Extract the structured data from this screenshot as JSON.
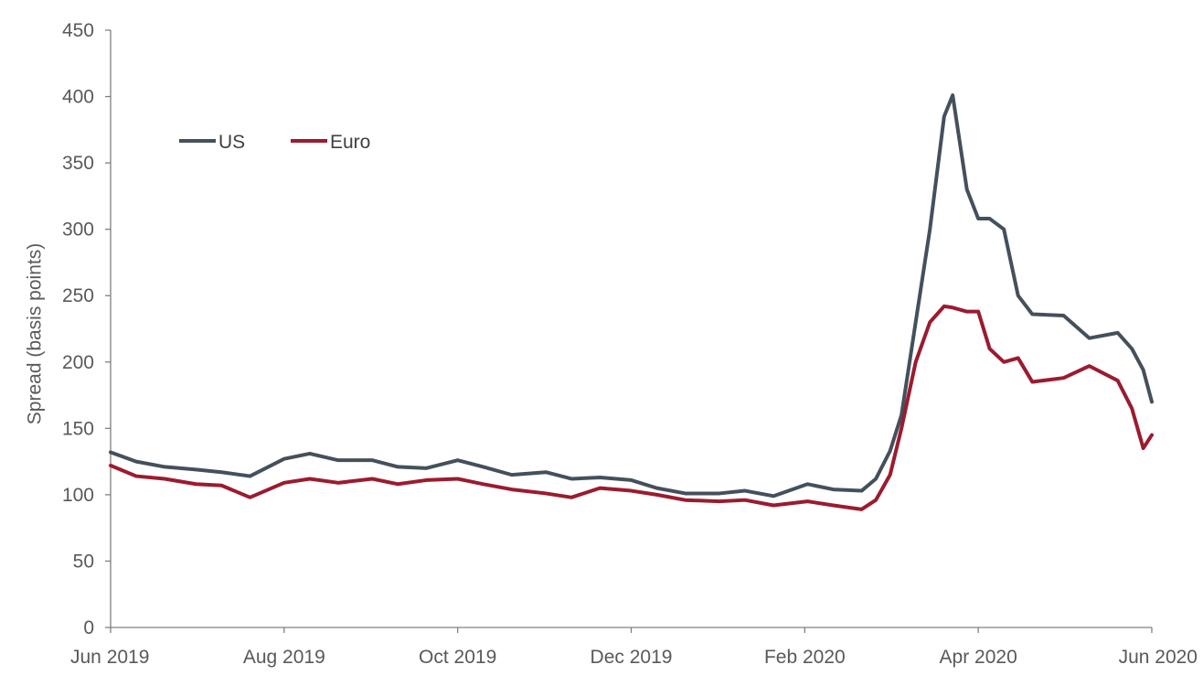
{
  "chart_data": {
    "type": "line",
    "title": "",
    "xlabel": "",
    "ylabel": "Spread (basis points)",
    "ylim": [
      0,
      450
    ],
    "yticks": [
      0,
      50,
      100,
      150,
      200,
      250,
      300,
      350,
      400,
      450
    ],
    "xlim": [
      "2019-06-01",
      "2020-06-01"
    ],
    "xticks": [
      "Jun 2019",
      "Aug 2019",
      "Oct 2019",
      "Dec 2019",
      "Feb 2020",
      "Apr 2020",
      "Jun 2020"
    ],
    "grid": false,
    "legend_position": "top-left",
    "x": [
      "2019-06-01",
      "2019-06-10",
      "2019-06-20",
      "2019-07-01",
      "2019-07-10",
      "2019-07-20",
      "2019-08-01",
      "2019-08-10",
      "2019-08-20",
      "2019-09-01",
      "2019-09-10",
      "2019-09-20",
      "2019-10-01",
      "2019-10-10",
      "2019-10-20",
      "2019-11-01",
      "2019-11-10",
      "2019-11-20",
      "2019-12-01",
      "2019-12-10",
      "2019-12-20",
      "2020-01-01",
      "2020-01-10",
      "2020-01-20",
      "2020-02-01",
      "2020-02-10",
      "2020-02-20",
      "2020-02-25",
      "2020-03-01",
      "2020-03-05",
      "2020-03-10",
      "2020-03-15",
      "2020-03-20",
      "2020-03-23",
      "2020-03-28",
      "2020-04-01",
      "2020-04-05",
      "2020-04-10",
      "2020-04-15",
      "2020-04-20",
      "2020-05-01",
      "2020-05-10",
      "2020-05-20",
      "2020-05-25",
      "2020-05-29",
      "2020-06-01"
    ],
    "series": [
      {
        "name": "US",
        "color": "#44505c",
        "values": [
          132,
          125,
          121,
          119,
          117,
          114,
          127,
          131,
          126,
          126,
          121,
          120,
          126,
          121,
          115,
          117,
          112,
          113,
          111,
          105,
          101,
          101,
          103,
          99,
          108,
          104,
          103,
          112,
          133,
          160,
          230,
          300,
          385,
          401,
          330,
          308,
          308,
          300,
          250,
          236,
          235,
          218,
          222,
          210,
          194,
          170
        ]
      },
      {
        "name": "Euro",
        "color": "#9b1b2f",
        "values": [
          122,
          114,
          112,
          108,
          107,
          98,
          109,
          112,
          109,
          112,
          108,
          111,
          112,
          108,
          104,
          101,
          98,
          105,
          103,
          100,
          96,
          95,
          96,
          92,
          95,
          92,
          89,
          96,
          115,
          150,
          200,
          230,
          242,
          241,
          238,
          238,
          210,
          200,
          203,
          185,
          188,
          197,
          186,
          165,
          135,
          145
        ]
      }
    ]
  }
}
